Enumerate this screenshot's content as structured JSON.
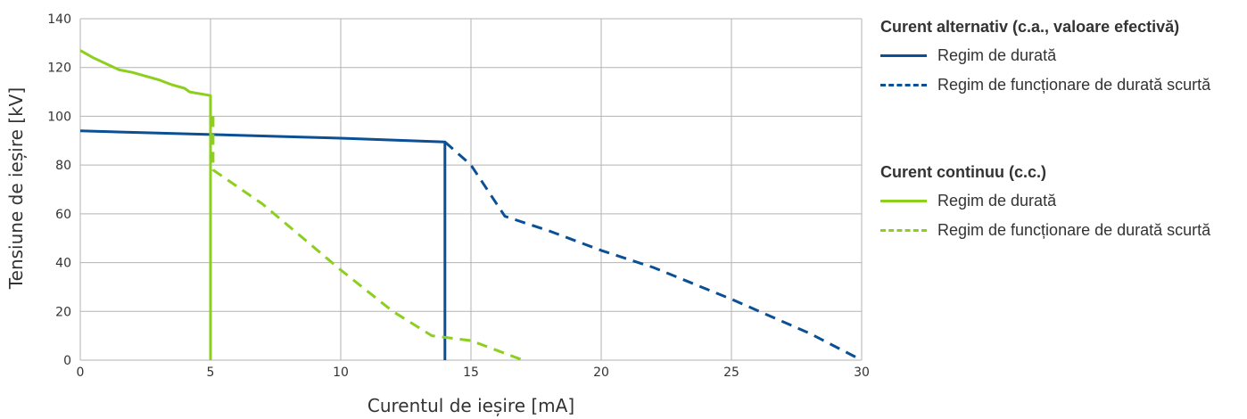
{
  "chart_data": {
    "type": "line",
    "xlabel": "Curentul de ieșire [mA]",
    "ylabel": "Tensiune de ieșire [kV]",
    "xlim": [
      0,
      30
    ],
    "ylim": [
      0,
      140
    ],
    "x_ticks": [
      "0",
      "5",
      "10",
      "15",
      "20",
      "25",
      "30"
    ],
    "y_ticks": [
      "0",
      "20",
      "40",
      "60",
      "80",
      "100",
      "120",
      "140"
    ],
    "grid": true,
    "legend_position": "right",
    "legend_groups": [
      {
        "title": "Curent alternativ (c.a., valoare efectivă)",
        "items": [
          "Regim de durată",
          "Regim de funcționare de durată scurtă"
        ]
      },
      {
        "title": "Curent continuu (c.c.)",
        "items": [
          "Regim de durată",
          "Regim de funcționare de durată scurtă"
        ]
      }
    ],
    "series": [
      {
        "name": "Regim de durată",
        "group": "Curent alternativ (c.a., valoare efectivă)",
        "color": "#0b4f94",
        "style": "solid",
        "points": [
          [
            0,
            94
          ],
          [
            5,
            92.5
          ],
          [
            10,
            91
          ],
          [
            14,
            89.5
          ],
          [
            14,
            0
          ]
        ]
      },
      {
        "name": "Regim de funcționare de durată scurtă",
        "group": "Curent alternativ (c.a., valoare efectivă)",
        "color": "#0b4f94",
        "style": "dashed",
        "points": [
          [
            14,
            89.5
          ],
          [
            15,
            80
          ],
          [
            16.3,
            59
          ],
          [
            18,
            53
          ],
          [
            20,
            45
          ],
          [
            22,
            38
          ],
          [
            25,
            25
          ],
          [
            28,
            11
          ],
          [
            30,
            0
          ]
        ]
      },
      {
        "name": "Regim de durată",
        "group": "Curent continuu (c.c.)",
        "color": "#8ccf1e",
        "style": "solid",
        "points": [
          [
            0,
            127
          ],
          [
            0.5,
            124
          ],
          [
            1,
            121.5
          ],
          [
            1.5,
            119
          ],
          [
            2,
            118
          ],
          [
            2.5,
            116.5
          ],
          [
            3,
            115
          ],
          [
            3.5,
            113
          ],
          [
            4,
            111.5
          ],
          [
            4.2,
            110
          ],
          [
            5,
            108.5
          ],
          [
            5,
            0
          ]
        ]
      },
      {
        "name": "Regim de funcționare de durată scurtă",
        "group": "Curent continuu (c.c.)",
        "color": "#8ccf1e",
        "style": "dashed",
        "points": [
          [
            5.1,
            100
          ],
          [
            5.1,
            78
          ],
          [
            7,
            64
          ],
          [
            10,
            37
          ],
          [
            12,
            20
          ],
          [
            13.5,
            10
          ],
          [
            15,
            8
          ],
          [
            17,
            0
          ]
        ]
      }
    ]
  }
}
